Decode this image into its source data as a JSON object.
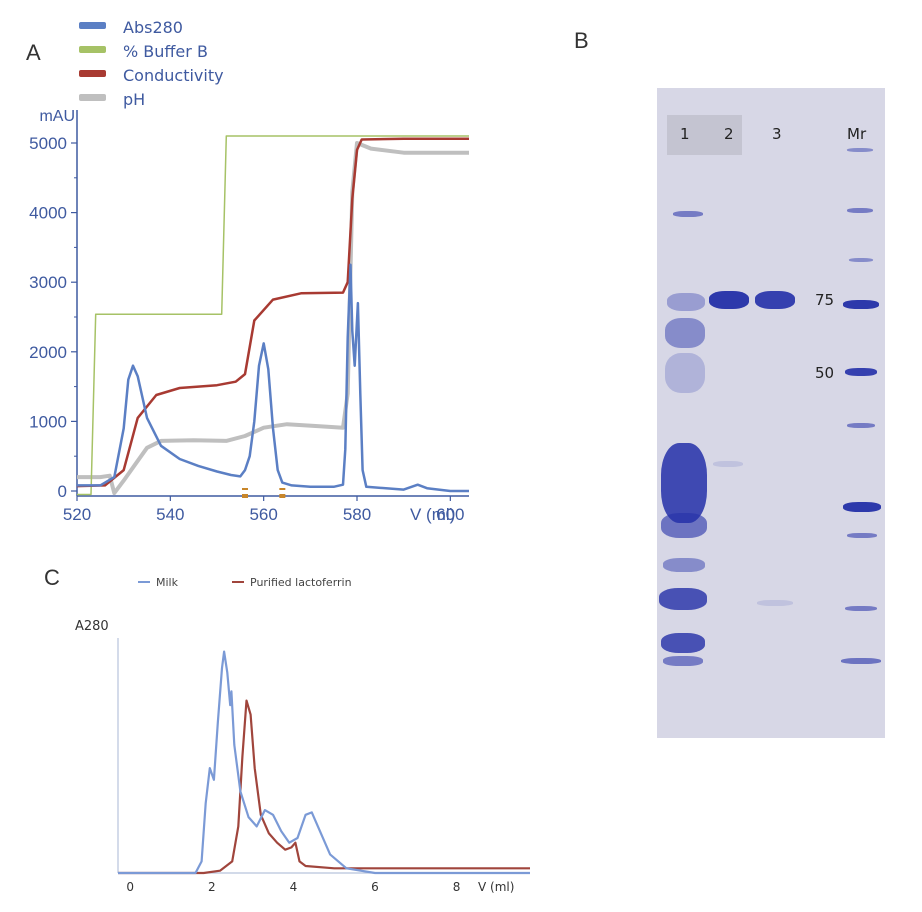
{
  "panels": {
    "a": "A",
    "b": "B",
    "c": "C"
  },
  "colors": {
    "abs280": "#5b7fc4",
    "buffer_b": "#a6c266",
    "conductivity": "#a83a32",
    "ph": "#bfbfbf",
    "axis": "#3f5aa0",
    "milk": "#7b9ad6",
    "lactoferrin": "#a0453c",
    "gel_band": "#2430a8",
    "gel_bg": "#d7d7e6"
  },
  "chart_data": [
    {
      "type": "line",
      "panel": "A",
      "ylabel": "mAU",
      "xlabel": "V (ml)",
      "xlim": [
        520,
        604
      ],
      "ylim": [
        0,
        5200
      ],
      "xticks": [
        "520",
        "540",
        "560",
        "580",
        "600"
      ],
      "yticks": [
        "0",
        "1000",
        "2000",
        "3000",
        "4000",
        "5000"
      ],
      "legend_position": "top-left",
      "fraction_marks": [
        556,
        564
      ],
      "series": [
        {
          "name": "Abs280",
          "color_key": "abs280",
          "points": [
            [
              520,
              80
            ],
            [
              525,
              80
            ],
            [
              528,
              200
            ],
            [
              530,
              900
            ],
            [
              531,
              1600
            ],
            [
              532,
              1800
            ],
            [
              533,
              1650
            ],
            [
              535,
              1050
            ],
            [
              538,
              650
            ],
            [
              542,
              460
            ],
            [
              546,
              360
            ],
            [
              550,
              280
            ],
            [
              553,
              230
            ],
            [
              555,
              210
            ],
            [
              556,
              300
            ],
            [
              557,
              500
            ],
            [
              558,
              1000
            ],
            [
              559,
              1800
            ],
            [
              560,
              2120
            ],
            [
              561,
              1750
            ],
            [
              562,
              900
            ],
            [
              563,
              300
            ],
            [
              564,
              120
            ],
            [
              566,
              80
            ],
            [
              570,
              60
            ],
            [
              575,
              60
            ],
            [
              577,
              90
            ],
            [
              577.5,
              600
            ],
            [
              578,
              2200
            ],
            [
              578.6,
              3250
            ],
            [
              579,
              2300
            ],
            [
              579.5,
              1800
            ],
            [
              580.2,
              2700
            ],
            [
              580.7,
              1400
            ],
            [
              581.2,
              300
            ],
            [
              582,
              60
            ],
            [
              590,
              20
            ],
            [
              593,
              90
            ],
            [
              595,
              40
            ],
            [
              600,
              0
            ],
            [
              604,
              0
            ]
          ]
        },
        {
          "name": "% Buffer B",
          "color_key": "buffer_b",
          "points": [
            [
              520,
              -50
            ],
            [
              523,
              -50
            ],
            [
              524,
              2540
            ],
            [
              551,
              2540
            ],
            [
              552,
              5100
            ],
            [
              604,
              5100
            ]
          ]
        },
        {
          "name": "Conductivity",
          "color_key": "conductivity",
          "points": [
            [
              520,
              70
            ],
            [
              526,
              80
            ],
            [
              530,
              300
            ],
            [
              533,
              1050
            ],
            [
              537,
              1380
            ],
            [
              542,
              1480
            ],
            [
              550,
              1520
            ],
            [
              554,
              1570
            ],
            [
              556,
              1680
            ],
            [
              558,
              2450
            ],
            [
              562,
              2750
            ],
            [
              568,
              2840
            ],
            [
              577,
              2850
            ],
            [
              578,
              3000
            ],
            [
              579,
              4200
            ],
            [
              580,
              4900
            ],
            [
              581,
              5050
            ],
            [
              590,
              5060
            ],
            [
              604,
              5060
            ]
          ]
        },
        {
          "name": "pH",
          "color_key": "ph",
          "points": [
            [
              520,
              200
            ],
            [
              525,
              200
            ],
            [
              527,
              220
            ],
            [
              528,
              -30
            ],
            [
              530,
              150
            ],
            [
              535,
              620
            ],
            [
              538,
              720
            ],
            [
              545,
              730
            ],
            [
              552,
              720
            ],
            [
              556,
              790
            ],
            [
              560,
              910
            ],
            [
              565,
              960
            ],
            [
              572,
              930
            ],
            [
              577,
              910
            ],
            [
              578,
              1400
            ],
            [
              579,
              4300
            ],
            [
              580,
              5000
            ],
            [
              583,
              4920
            ],
            [
              590,
              4860
            ],
            [
              604,
              4860
            ]
          ]
        }
      ]
    },
    {
      "type": "line",
      "panel": "C",
      "ylabel": "A280",
      "xlabel": "V (ml)",
      "xlim": [
        -0.3,
        9.8
      ],
      "ylim": [
        0,
        1
      ],
      "xticks": [
        "0",
        "2",
        "4",
        "6",
        "8"
      ],
      "legend_position": "top",
      "series": [
        {
          "name": "Milk",
          "color_key": "milk",
          "points": [
            [
              -0.3,
              0
            ],
            [
              1.6,
              0
            ],
            [
              1.75,
              0.05
            ],
            [
              1.85,
              0.3
            ],
            [
              1.95,
              0.45
            ],
            [
              2.05,
              0.4
            ],
            [
              2.15,
              0.65
            ],
            [
              2.25,
              0.88
            ],
            [
              2.3,
              0.95
            ],
            [
              2.38,
              0.86
            ],
            [
              2.45,
              0.72
            ],
            [
              2.48,
              0.78
            ],
            [
              2.55,
              0.55
            ],
            [
              2.7,
              0.35
            ],
            [
              2.9,
              0.24
            ],
            [
              3.1,
              0.2
            ],
            [
              3.3,
              0.27
            ],
            [
              3.5,
              0.25
            ],
            [
              3.7,
              0.18
            ],
            [
              3.9,
              0.13
            ],
            [
              4.1,
              0.15
            ],
            [
              4.3,
              0.25
            ],
            [
              4.45,
              0.26
            ],
            [
              4.6,
              0.2
            ],
            [
              4.9,
              0.08
            ],
            [
              5.3,
              0.02
            ],
            [
              6,
              0
            ],
            [
              9.8,
              0
            ]
          ]
        },
        {
          "name": "Purified lactoferrin",
          "color_key": "lactoferrin",
          "points": [
            [
              -0.3,
              0
            ],
            [
              1.8,
              0
            ],
            [
              2.2,
              0.01
            ],
            [
              2.5,
              0.05
            ],
            [
              2.65,
              0.2
            ],
            [
              2.75,
              0.5
            ],
            [
              2.85,
              0.74
            ],
            [
              2.95,
              0.68
            ],
            [
              3.05,
              0.45
            ],
            [
              3.2,
              0.25
            ],
            [
              3.4,
              0.17
            ],
            [
              3.6,
              0.13
            ],
            [
              3.8,
              0.1
            ],
            [
              3.95,
              0.11
            ],
            [
              4.05,
              0.13
            ],
            [
              4.15,
              0.05
            ],
            [
              4.3,
              0.03
            ],
            [
              5,
              0.02
            ],
            [
              9.8,
              0.02
            ]
          ]
        }
      ]
    }
  ],
  "gel": {
    "lane_labels": [
      "1",
      "2",
      "3",
      "Mr"
    ],
    "marker_labels": [
      "75",
      "50"
    ]
  }
}
